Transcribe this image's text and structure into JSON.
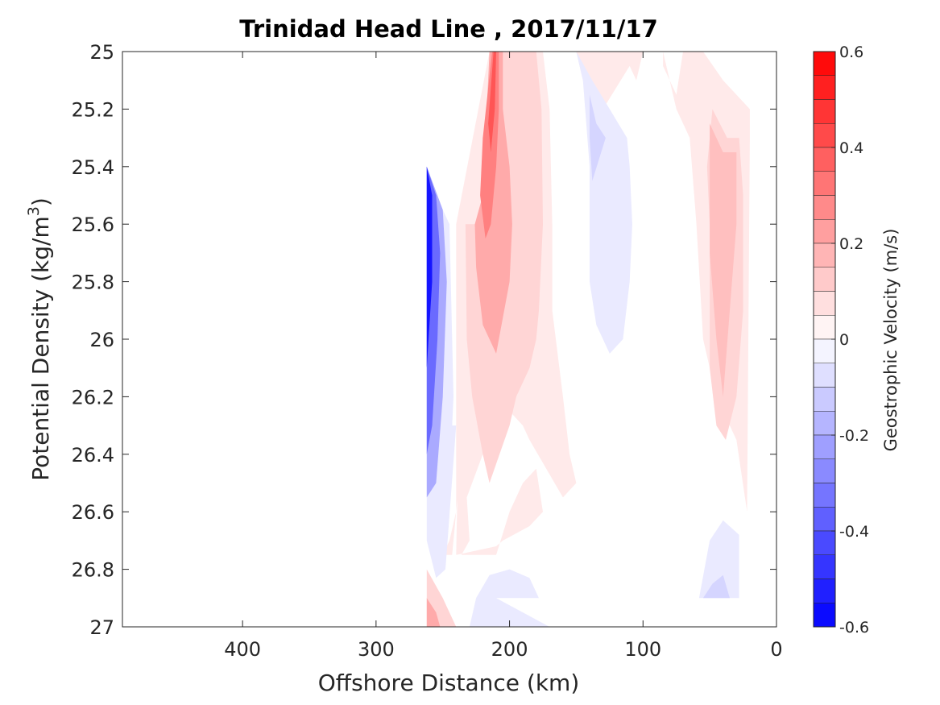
{
  "chart_data": {
    "type": "filled-contour",
    "title": "Trinidad Head Line , 2017/11/17",
    "xlabel": "Offshore Distance (km)",
    "ylabel": "Potential Density (kg/m",
    "ylabel_sup": "3",
    "ylabel_close": ")",
    "colorbar_label": "Geostrophic Velocity (m/s)",
    "xlim": [
      490,
      0
    ],
    "ylim": [
      25,
      27
    ],
    "x_direction": "reversed",
    "y_direction": "reversed",
    "x_ticks": [
      400,
      300,
      200,
      100,
      0
    ],
    "x_tick_labels": [
      "400",
      "300",
      "200",
      "100",
      "0"
    ],
    "y_ticks": [
      25,
      25.2,
      25.4,
      25.6,
      25.8,
      26,
      26.2,
      26.4,
      26.6,
      26.8,
      27
    ],
    "y_tick_labels": [
      "25",
      "25.2",
      "25.4",
      "25.6",
      "25.8",
      "26",
      "26.2",
      "26.4",
      "26.6",
      "26.8",
      "27"
    ],
    "colorbar_range": [
      -0.6,
      0.6
    ],
    "colorbar_ticks": [
      -0.6,
      -0.4,
      -0.2,
      0,
      0.2,
      0.4,
      0.6
    ],
    "colorbar_tick_labels": [
      "-0.6",
      "-0.4",
      "-0.2",
      "0",
      "0.2",
      "0.4",
      "0.6"
    ],
    "colorbar_levels": 24,
    "colormap": {
      "negative": "#0000ff",
      "zero": "#ffffff",
      "positive": "#ff0000"
    },
    "regions": [
      {
        "value": 0.05,
        "points": [
          [
            175,
            25
          ],
          [
            150,
            25
          ],
          [
            145,
            25.1
          ],
          [
            130,
            25.2
          ],
          [
            110,
            25.05
          ],
          [
            105,
            25.1
          ],
          [
            100,
            25
          ],
          [
            85,
            25
          ],
          [
            75,
            25.2
          ],
          [
            65,
            25.3
          ],
          [
            60,
            25.6
          ],
          [
            55,
            26.0
          ],
          [
            45,
            26.2
          ],
          [
            30,
            26.35
          ],
          [
            22,
            26.6
          ],
          [
            20,
            25.3
          ],
          [
            20,
            25.2
          ],
          [
            40,
            25.1
          ],
          [
            55,
            25
          ],
          [
            70,
            25
          ],
          [
            75,
            25.15
          ],
          [
            85,
            25.05
          ],
          [
            85,
            25
          ],
          [
            70,
            25
          ]
        ]
      },
      {
        "value": 0.05,
        "points": [
          [
            215,
            25
          ],
          [
            175,
            25
          ],
          [
            170,
            25.2
          ],
          [
            168,
            25.6
          ],
          [
            168,
            25.9
          ],
          [
            160,
            26.2
          ],
          [
            155,
            26.4
          ],
          [
            150,
            26.5
          ],
          [
            160,
            26.55
          ],
          [
            185,
            26.35
          ],
          [
            190,
            26.3
          ],
          [
            200,
            26.25
          ],
          [
            210,
            26.2
          ],
          [
            220,
            26.4
          ],
          [
            232,
            26.55
          ],
          [
            230,
            26.7
          ],
          [
            236,
            26.75
          ],
          [
            210,
            26.75
          ],
          [
            200,
            26.6
          ],
          [
            190,
            26.5
          ],
          [
            180,
            26.45
          ],
          [
            175,
            26.6
          ],
          [
            185,
            26.65
          ],
          [
            205,
            26.7
          ],
          [
            210,
            26.72
          ],
          [
            240,
            26.75
          ],
          [
            235,
            25.6
          ],
          [
            225,
            25.6
          ],
          [
            230,
            25.8
          ],
          [
            230,
            26.1
          ],
          [
            232,
            26.2
          ],
          [
            236,
            26.4
          ],
          [
            240,
            26.6
          ],
          [
            245,
            26.7
          ],
          [
            250,
            26.75
          ],
          [
            243,
            26.75
          ],
          [
            240,
            26.6
          ],
          [
            240,
            25.6
          ]
        ]
      },
      {
        "value": 0.1,
        "points": [
          [
            210,
            25
          ],
          [
            180,
            25
          ],
          [
            176,
            25.2
          ],
          [
            175,
            25.6
          ],
          [
            178,
            25.9
          ],
          [
            180,
            26.0
          ],
          [
            185,
            26.1
          ],
          [
            195,
            26.2
          ],
          [
            200,
            26.3
          ],
          [
            215,
            26.5
          ],
          [
            220,
            26.4
          ],
          [
            228,
            26.2
          ],
          [
            232,
            26.0
          ],
          [
            233,
            25.6
          ],
          [
            225,
            25.6
          ],
          [
            218,
            25.5
          ],
          [
            216,
            25.35
          ],
          [
            212,
            25.2
          ]
        ]
      },
      {
        "value": 0.1,
        "points": [
          [
            48,
            25.2
          ],
          [
            37,
            25.3
          ],
          [
            28,
            25.3
          ],
          [
            25,
            25.5
          ],
          [
            25,
            25.9
          ],
          [
            30,
            26.2
          ],
          [
            38,
            26.35
          ],
          [
            45,
            26.3
          ],
          [
            50,
            26.1
          ],
          [
            50,
            25.6
          ],
          [
            52,
            25.4
          ]
        ]
      },
      {
        "value": 0.2,
        "points": [
          [
            215,
            25
          ],
          [
            205,
            25
          ],
          [
            205,
            25.2
          ],
          [
            200,
            25.4
          ],
          [
            198,
            25.6
          ],
          [
            200,
            25.8
          ],
          [
            210,
            26.05
          ],
          [
            220,
            25.95
          ],
          [
            225,
            25.75
          ],
          [
            226,
            25.6
          ],
          [
            220,
            25.5
          ],
          [
            218,
            25.3
          ]
        ]
      },
      {
        "value": 0.15,
        "points": [
          [
            50,
            25.25
          ],
          [
            40,
            25.35
          ],
          [
            30,
            25.35
          ],
          [
            30,
            25.6
          ],
          [
            35,
            25.9
          ],
          [
            40,
            26.2
          ],
          [
            45,
            26.0
          ],
          [
            50,
            25.7
          ]
        ]
      },
      {
        "value": 0.3,
        "points": [
          [
            213,
            25
          ],
          [
            208,
            25
          ],
          [
            208,
            25.2
          ],
          [
            210,
            25.4
          ],
          [
            214,
            25.6
          ],
          [
            218,
            25.65
          ],
          [
            222,
            25.5
          ],
          [
            220,
            25.3
          ]
        ]
      },
      {
        "value": 0.4,
        "points": [
          [
            212,
            25
          ],
          [
            210,
            25
          ],
          [
            211,
            25.2
          ],
          [
            214,
            25.35
          ],
          [
            216,
            25.25
          ]
        ]
      },
      {
        "value": -0.05,
        "points": [
          [
            150,
            25
          ],
          [
            145,
            25.1
          ],
          [
            140,
            25.4
          ],
          [
            140,
            25.8
          ],
          [
            135,
            25.95
          ],
          [
            125,
            26.05
          ],
          [
            115,
            26.0
          ],
          [
            110,
            25.8
          ],
          [
            108,
            25.6
          ],
          [
            110,
            25.4
          ],
          [
            112,
            25.3
          ],
          [
            125,
            25.2
          ],
          [
            138,
            25.1
          ]
        ]
      },
      {
        "value": -0.1,
        "points": [
          [
            140,
            25.15
          ],
          [
            135,
            25.25
          ],
          [
            128,
            25.3
          ],
          [
            138,
            25.45
          ],
          [
            140,
            25.3
          ]
        ]
      },
      {
        "value": -0.05,
        "points": [
          [
            240,
            26.3
          ],
          [
            248,
            26.8
          ],
          [
            255,
            26.83
          ],
          [
            262,
            26.7
          ],
          [
            262,
            26.4
          ],
          [
            255,
            26.3
          ]
        ]
      },
      {
        "value": -0.05,
        "points": [
          [
            260,
            25.45
          ],
          [
            245,
            25.6
          ],
          [
            242,
            26.2
          ],
          [
            245,
            26.5
          ],
          [
            250,
            26.6
          ],
          [
            260,
            26.55
          ]
        ]
      },
      {
        "value": -0.2,
        "points": [
          [
            262,
            25.4
          ],
          [
            250,
            25.55
          ],
          [
            247,
            25.8
          ],
          [
            250,
            26.2
          ],
          [
            255,
            26.5
          ],
          [
            262,
            26.55
          ]
        ]
      },
      {
        "value": -0.35,
        "points": [
          [
            262,
            25.4
          ],
          [
            255,
            25.5
          ],
          [
            252,
            25.7
          ],
          [
            254,
            26.0
          ],
          [
            258,
            26.3
          ],
          [
            262,
            26.4
          ]
        ]
      },
      {
        "value": -0.55,
        "points": [
          [
            262,
            25.4
          ],
          [
            258,
            25.5
          ],
          [
            258,
            25.8
          ],
          [
            262,
            26.1
          ]
        ]
      },
      {
        "value": -0.05,
        "points": [
          [
            210,
            26.9
          ],
          [
            170,
            27
          ],
          [
            230,
            27
          ],
          [
            225,
            26.9
          ],
          [
            215,
            26.82
          ],
          [
            200,
            26.8
          ],
          [
            185,
            26.83
          ],
          [
            178,
            26.9
          ]
        ]
      },
      {
        "value": -0.05,
        "points": [
          [
            58,
            26.9
          ],
          [
            28,
            26.9
          ],
          [
            28,
            26.68
          ],
          [
            40,
            26.63
          ],
          [
            50,
            26.7
          ]
        ]
      },
      {
        "value": -0.1,
        "points": [
          [
            55,
            26.9
          ],
          [
            35,
            26.9
          ],
          [
            40,
            26.82
          ],
          [
            48,
            26.85
          ]
        ]
      },
      {
        "value": 0.1,
        "points": [
          [
            262,
            26.8
          ],
          [
            250,
            26.9
          ],
          [
            240,
            27
          ],
          [
            262,
            27
          ]
        ]
      },
      {
        "value": 0.2,
        "points": [
          [
            262,
            26.9
          ],
          [
            255,
            26.95
          ],
          [
            252,
            27
          ],
          [
            262,
            27
          ]
        ]
      }
    ]
  }
}
